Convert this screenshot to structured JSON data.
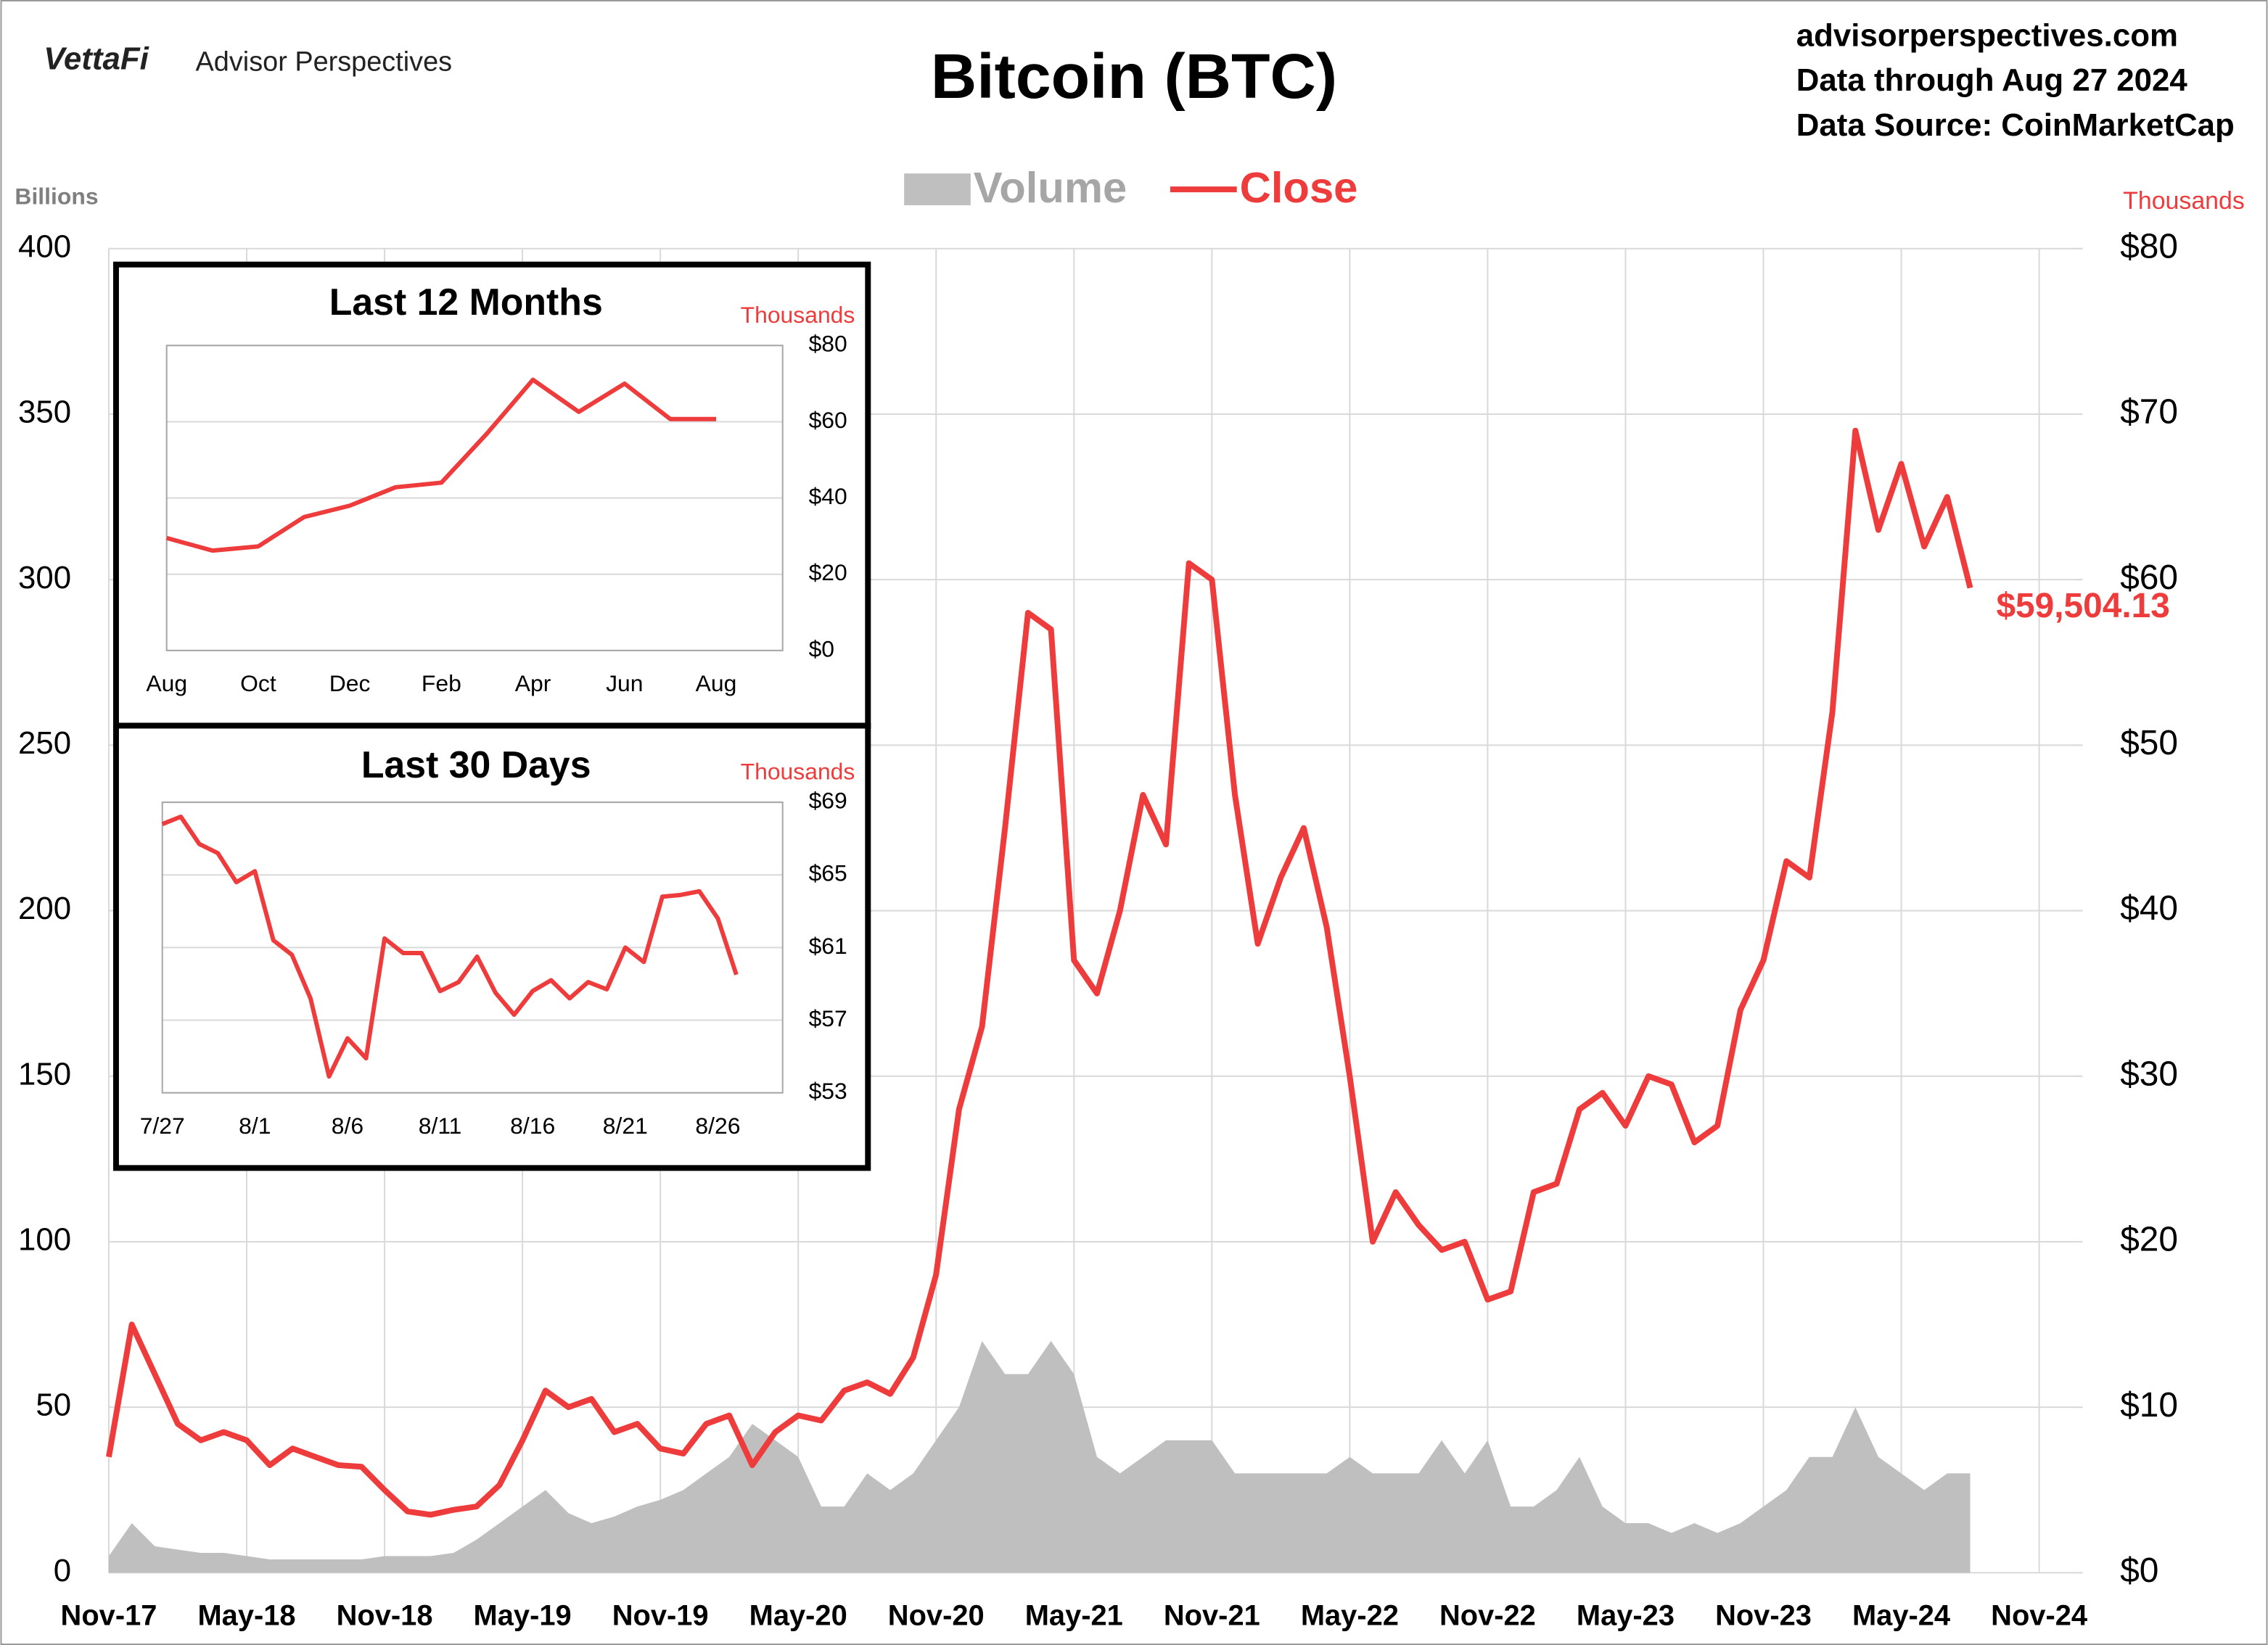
{
  "header": {
    "brand": "VettaFi",
    "subbrand": "Advisor Perspectives",
    "site": "advisorperspectives.com",
    "data_through": "Data through Aug 27 2024",
    "source": "Data Source: CoinMarketCap"
  },
  "chart_data": [
    {
      "type": "combo",
      "title": "Bitcoin (BTC)",
      "y_label": "Billions",
      "y2_label": "Thousands",
      "x": [
        "2017-11",
        "2017-12",
        "2018-01",
        "2018-02",
        "2018-03",
        "2018-04",
        "2018-05",
        "2018-06",
        "2018-07",
        "2018-08",
        "2018-09",
        "2018-10",
        "2018-11",
        "2018-12",
        "2019-01",
        "2019-02",
        "2019-03",
        "2019-04",
        "2019-05",
        "2019-06",
        "2019-07",
        "2019-08",
        "2019-09",
        "2019-10",
        "2019-11",
        "2019-12",
        "2020-01",
        "2020-02",
        "2020-03",
        "2020-04",
        "2020-05",
        "2020-06",
        "2020-07",
        "2020-08",
        "2020-09",
        "2020-10",
        "2020-11",
        "2020-12",
        "2021-01",
        "2021-02",
        "2021-03",
        "2021-04",
        "2021-05",
        "2021-06",
        "2021-07",
        "2021-08",
        "2021-09",
        "2021-10",
        "2021-11",
        "2021-12",
        "2022-01",
        "2022-02",
        "2022-03",
        "2022-04",
        "2022-05",
        "2022-06",
        "2022-07",
        "2022-08",
        "2022-09",
        "2022-10",
        "2022-11",
        "2022-12",
        "2023-01",
        "2023-02",
        "2023-03",
        "2023-04",
        "2023-05",
        "2023-06",
        "2023-07",
        "2023-08",
        "2023-09",
        "2023-10",
        "2023-11",
        "2023-12",
        "2024-01",
        "2024-02",
        "2024-03",
        "2024-04",
        "2024-05",
        "2024-06",
        "2024-07",
        "2024-08"
      ],
      "series": [
        {
          "name": "Volume",
          "type": "area",
          "color": "#bfbfbf",
          "values": [
            5,
            15,
            8,
            7,
            6,
            6,
            5,
            4,
            4,
            4,
            4,
            4,
            5,
            5,
            5,
            6,
            10,
            15,
            20,
            25,
            18,
            15,
            17,
            20,
            22,
            25,
            30,
            35,
            45,
            40,
            35,
            20,
            20,
            30,
            25,
            30,
            40,
            50,
            70,
            60,
            60,
            70,
            60,
            35,
            30,
            35,
            40,
            40,
            40,
            30,
            30,
            30,
            30,
            30,
            35,
            30,
            30,
            30,
            40,
            30,
            40,
            20,
            20,
            25,
            35,
            20,
            15,
            15,
            12,
            15,
            12,
            15,
            20,
            25,
            35,
            35,
            50,
            35,
            30,
            25,
            30,
            30
          ]
        },
        {
          "name": "Close",
          "type": "line",
          "axis": "y2",
          "color": "#ee3b3b",
          "values": [
            7,
            15,
            12,
            9,
            8,
            8.5,
            8,
            6.5,
            7.5,
            7,
            6.5,
            6.4,
            5,
            3.7,
            3.5,
            3.8,
            4,
            5.3,
            8,
            11,
            10,
            10.5,
            8.5,
            9,
            7.5,
            7.2,
            9,
            9.5,
            6.5,
            8.5,
            9.5,
            9.2,
            11,
            11.5,
            10.8,
            13,
            18,
            28,
            33,
            45,
            58,
            57,
            37,
            35,
            40,
            47,
            44,
            61,
            60,
            47,
            38,
            42,
            45,
            39,
            30,
            20,
            23,
            21,
            19.5,
            20,
            16.5,
            17,
            23,
            23.5,
            28,
            29,
            27,
            30,
            29.5,
            26,
            27,
            34,
            37,
            43,
            42,
            52,
            69,
            63,
            67,
            62,
            65,
            59.50413
          ],
          "value_labels": [
            null,
            null,
            null,
            null,
            null,
            null,
            null,
            null,
            null,
            null,
            null,
            null,
            null,
            null,
            null,
            null,
            null,
            null,
            null,
            null,
            null,
            null,
            null,
            null,
            null,
            null,
            null,
            null,
            null,
            null,
            null,
            null,
            null,
            null,
            null,
            null,
            null,
            null,
            null,
            null,
            null,
            null,
            null,
            null,
            null,
            null,
            null,
            null,
            null,
            null,
            null,
            null,
            null,
            null,
            null,
            null,
            null,
            null,
            null,
            null,
            null,
            null,
            null,
            null,
            null,
            null,
            null,
            null,
            null,
            null,
            null,
            null,
            null,
            null,
            null,
            null,
            null,
            null,
            null,
            null,
            null,
            "$59,504.13"
          ]
        }
      ],
      "xlim": [
        "2017-11",
        "2024-11"
      ],
      "xticks": [
        {
          "value": "2017-11",
          "label": "Nov-17"
        },
        {
          "value": "2018-05",
          "label": "May-18"
        },
        {
          "value": "2018-11",
          "label": "Nov-18"
        },
        {
          "value": "2019-05",
          "label": "May-19"
        },
        {
          "value": "2019-11",
          "label": "Nov-19"
        },
        {
          "value": "2020-05",
          "label": "May-20"
        },
        {
          "value": "2020-11",
          "label": "Nov-20"
        },
        {
          "value": "2021-05",
          "label": "May-21"
        },
        {
          "value": "2021-11",
          "label": "Nov-21"
        },
        {
          "value": "2022-05",
          "label": "May-22"
        },
        {
          "value": "2022-11",
          "label": "Nov-22"
        },
        {
          "value": "2023-05",
          "label": "May-23"
        },
        {
          "value": "2023-11",
          "label": "Nov-23"
        },
        {
          "value": "2024-05",
          "label": "May-24"
        },
        {
          "value": "2024-11",
          "label": "Nov-24"
        }
      ],
      "ylim": [
        0,
        400
      ],
      "yticks": [
        0,
        50,
        100,
        150,
        200,
        250,
        300,
        350,
        400
      ],
      "y2lim": [
        0,
        80
      ],
      "y2ticks": [
        {
          "value": 0,
          "label": "$0"
        },
        {
          "value": 10,
          "label": "$10"
        },
        {
          "value": 20,
          "label": "$20"
        },
        {
          "value": 30,
          "label": "$30"
        },
        {
          "value": 40,
          "label": "$40"
        },
        {
          "value": 50,
          "label": "$50"
        },
        {
          "value": 60,
          "label": "$60"
        },
        {
          "value": 70,
          "label": "$70"
        },
        {
          "value": 80,
          "label": "$80"
        }
      ],
      "grid": true,
      "legend": "top"
    },
    {
      "type": "line",
      "title": "Last 12 Months",
      "y_label": "Thousands",
      "color": "#ee3b3b",
      "categories": [
        "Aug",
        null,
        "Oct",
        null,
        "Dec",
        null,
        "Feb",
        null,
        "Apr",
        null,
        "Jun",
        null,
        "Aug"
      ],
      "values": [
        29.5,
        26.2,
        27.3,
        35,
        38,
        42.8,
        44,
        57,
        71,
        62.6,
        70,
        60.7,
        60.7
      ],
      "ylim": [
        0,
        80
      ],
      "yticks": [
        {
          "value": 0,
          "label": "$0"
        },
        {
          "value": 20,
          "label": "$20"
        },
        {
          "value": 40,
          "label": "$40"
        },
        {
          "value": 60,
          "label": "$60"
        },
        {
          "value": 80,
          "label": "$80"
        }
      ],
      "grid": true
    },
    {
      "type": "line",
      "title": "Last 30 Days",
      "y_label": "Thousands",
      "color": "#ee3b3b",
      "categories": [
        "7/27",
        null,
        null,
        null,
        null,
        "8/1",
        null,
        null,
        null,
        null,
        "8/6",
        null,
        null,
        null,
        null,
        "8/11",
        null,
        null,
        null,
        null,
        "8/16",
        null,
        null,
        null,
        null,
        "8/21",
        null,
        null,
        null,
        null,
        "8/26",
        null
      ],
      "values": [
        67.8,
        68.2,
        66.7,
        66.2,
        64.6,
        65.2,
        61.4,
        60.6,
        58.2,
        53.9,
        56.0,
        54.9,
        61.5,
        60.7,
        60.7,
        58.6,
        59.1,
        60.5,
        58.5,
        57.3,
        58.6,
        59.2,
        58.2,
        59.1,
        58.7,
        61.0,
        60.2,
        63.8,
        63.9,
        64.1,
        62.6,
        59.5
      ],
      "ylim": [
        53,
        69
      ],
      "yticks": [
        {
          "value": 53,
          "label": "$53"
        },
        {
          "value": 57,
          "label": "$57"
        },
        {
          "value": 61,
          "label": "$61"
        },
        {
          "value": 65,
          "label": "$65"
        },
        {
          "value": 69,
          "label": "$69"
        }
      ],
      "grid": true
    }
  ]
}
